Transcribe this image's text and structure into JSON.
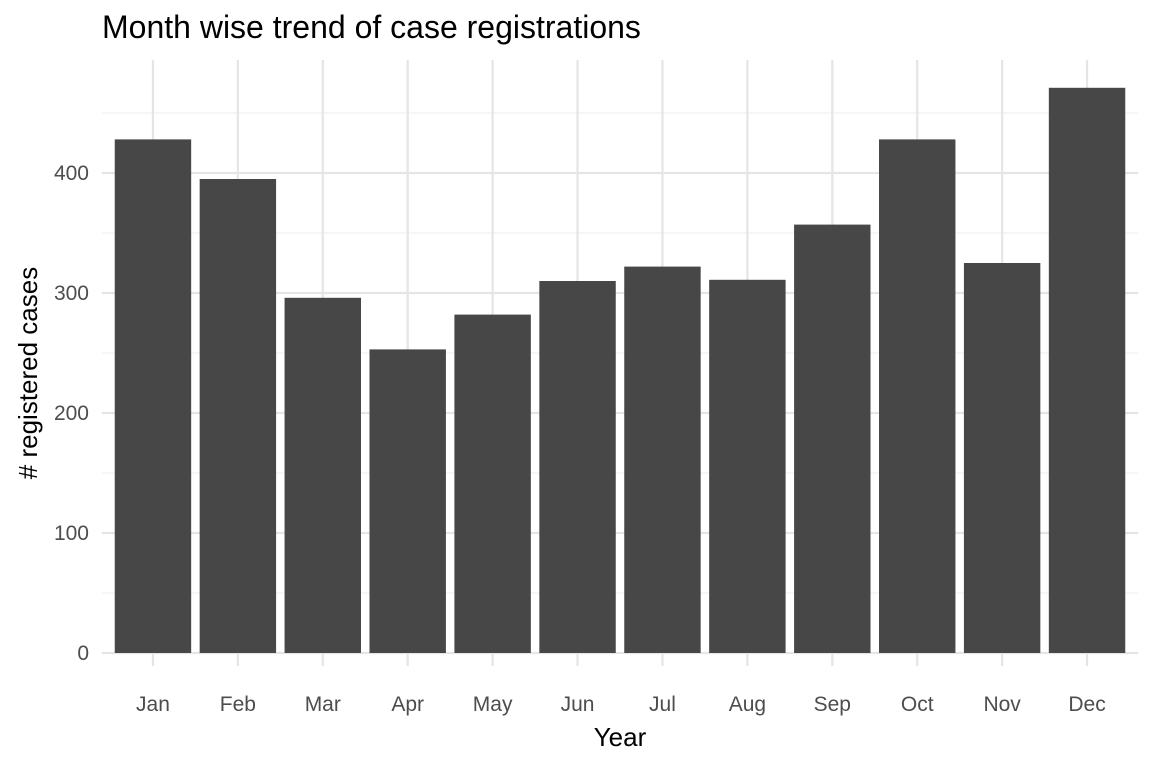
{
  "chart_data": {
    "type": "bar",
    "title": "Month wise trend of case registrations",
    "xlabel": "Year",
    "ylabel": "# registered cases",
    "categories": [
      "Jan",
      "Feb",
      "Mar",
      "Apr",
      "May",
      "Jun",
      "Jul",
      "Aug",
      "Sep",
      "Oct",
      "Nov",
      "Dec"
    ],
    "values": [
      428,
      395,
      296,
      253,
      282,
      310,
      322,
      311,
      357,
      428,
      325,
      471
    ],
    "ylim": [
      0,
      495
    ],
    "yticks": [
      0,
      100,
      200,
      300,
      400
    ],
    "grid": true,
    "legend": "none",
    "colors": {
      "bar": "#474747",
      "grid_major": "#e5e5e5",
      "grid_minor": "#f0f0f0",
      "tick_text": "#4d4d4d",
      "text": "#000000",
      "background": "#ffffff"
    }
  }
}
